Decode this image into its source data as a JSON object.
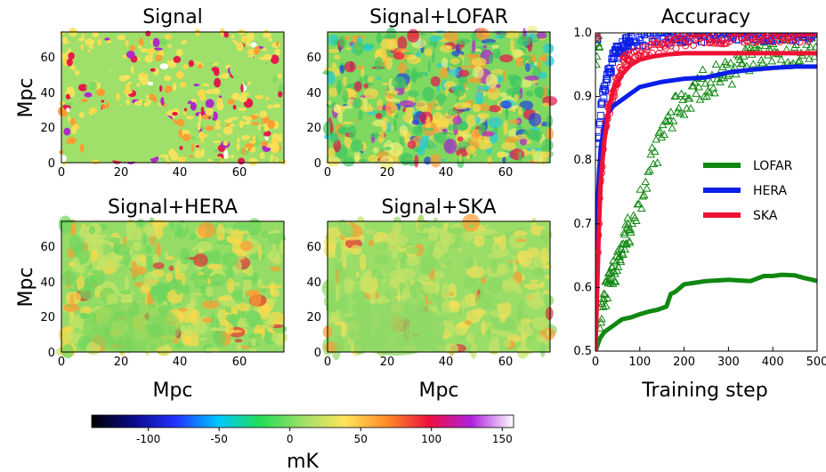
{
  "chart_data": [
    {
      "type": "heatmap",
      "title": "Signal",
      "ylabel": "Mpc",
      "xlabel": "",
      "xlim": [
        0,
        75
      ],
      "ylim": [
        0,
        75
      ],
      "xticks": [
        "0",
        "20",
        "40",
        "60"
      ],
      "yticks": [
        "0",
        "20",
        "40",
        "60"
      ],
      "style": "signal"
    },
    {
      "type": "heatmap",
      "title": "Signal+LOFAR",
      "ylabel": "",
      "xlabel": "",
      "xlim": [
        0,
        75
      ],
      "ylim": [
        0,
        75
      ],
      "xticks": [
        "0",
        "20",
        "40",
        "60"
      ],
      "yticks": [
        "0",
        "20",
        "40",
        "60"
      ],
      "style": "lofar"
    },
    {
      "type": "heatmap",
      "title": "Signal+HERA",
      "ylabel": "Mpc",
      "xlabel": "Mpc",
      "xlim": [
        0,
        75
      ],
      "ylim": [
        0,
        75
      ],
      "xticks": [
        "0",
        "20",
        "40",
        "60"
      ],
      "yticks": [
        "0",
        "20",
        "40",
        "60"
      ],
      "style": "hera"
    },
    {
      "type": "heatmap",
      "title": "Signal+SKA",
      "ylabel": "",
      "xlabel": "Mpc",
      "xlim": [
        0,
        75
      ],
      "ylim": [
        0,
        75
      ],
      "xticks": [
        "0",
        "20",
        "40",
        "60"
      ],
      "yticks": [
        "0",
        "20",
        "40",
        "60"
      ],
      "style": "ska"
    },
    {
      "type": "line",
      "title": "Accuracy",
      "xlabel": "Training step",
      "ylabel": "",
      "xlim": [
        0,
        500
      ],
      "ylim": [
        0.5,
        1.0
      ],
      "xticks": [
        "0",
        "100",
        "200",
        "300",
        "400",
        "500"
      ],
      "yticks": [
        "0.5",
        "0.6",
        "0.7",
        "0.8",
        "0.9",
        "1.0"
      ],
      "legend": "right",
      "series": [
        {
          "name": "LOFAR",
          "color": "#118811",
          "marker": "triangle",
          "line": [
            [
              0,
              0.5
            ],
            [
              10,
              0.52
            ],
            [
              20,
              0.53
            ],
            [
              40,
              0.54
            ],
            [
              60,
              0.55
            ],
            [
              80,
              0.553
            ],
            [
              100,
              0.558
            ],
            [
              120,
              0.562
            ],
            [
              140,
              0.565
            ],
            [
              160,
              0.57
            ],
            [
              170,
              0.59
            ],
            [
              180,
              0.593
            ],
            [
              200,
              0.605
            ],
            [
              220,
              0.607
            ],
            [
              250,
              0.61
            ],
            [
              300,
              0.612
            ],
            [
              350,
              0.61
            ],
            [
              380,
              0.618
            ],
            [
              400,
              0.618
            ],
            [
              420,
              0.62
            ],
            [
              450,
              0.619
            ],
            [
              470,
              0.615
            ],
            [
              490,
              0.612
            ],
            [
              500,
              0.61
            ]
          ],
          "points": [
            [
              10,
              0.55
            ],
            [
              20,
              0.58
            ],
            [
              30,
              0.6
            ],
            [
              40,
              0.62
            ],
            [
              50,
              0.64
            ],
            [
              60,
              0.66
            ],
            [
              70,
              0.68
            ],
            [
              80,
              0.7
            ],
            [
              90,
              0.72
            ],
            [
              100,
              0.74
            ],
            [
              110,
              0.76
            ],
            [
              120,
              0.78
            ],
            [
              130,
              0.8
            ],
            [
              140,
              0.82
            ],
            [
              150,
              0.84
            ],
            [
              160,
              0.85
            ],
            [
              170,
              0.86
            ],
            [
              180,
              0.88
            ],
            [
              200,
              0.89
            ],
            [
              220,
              0.91
            ],
            [
              250,
              0.92
            ],
            [
              280,
              0.93
            ],
            [
              300,
              0.94
            ],
            [
              330,
              0.95
            ],
            [
              360,
              0.96
            ],
            [
              400,
              0.965
            ],
            [
              450,
              0.97
            ],
            [
              500,
              0.975
            ]
          ]
        },
        {
          "name": "HERA",
          "color": "#0a1ee8",
          "marker": "square",
          "line": [
            [
              0,
              0.66
            ],
            [
              5,
              0.73
            ],
            [
              8,
              0.78
            ],
            [
              12,
              0.82
            ],
            [
              20,
              0.855
            ],
            [
              30,
              0.875
            ],
            [
              40,
              0.885
            ],
            [
              60,
              0.895
            ],
            [
              80,
              0.905
            ],
            [
              100,
              0.915
            ],
            [
              150,
              0.923
            ],
            [
              200,
              0.928
            ],
            [
              250,
              0.93
            ],
            [
              300,
              0.938
            ],
            [
              350,
              0.942
            ],
            [
              400,
              0.945
            ],
            [
              450,
              0.947
            ],
            [
              500,
              0.947
            ]
          ],
          "points": [
            [
              5,
              0.82
            ],
            [
              10,
              0.86
            ],
            [
              15,
              0.89
            ],
            [
              20,
              0.91
            ],
            [
              30,
              0.94
            ],
            [
              40,
              0.96
            ],
            [
              50,
              0.97
            ],
            [
              60,
              0.98
            ],
            [
              80,
              0.985
            ],
            [
              100,
              0.99
            ],
            [
              150,
              0.995
            ],
            [
              200,
              0.997
            ],
            [
              300,
              0.998
            ],
            [
              400,
              0.999
            ],
            [
              500,
              0.999
            ]
          ]
        },
        {
          "name": "SKA",
          "color": "#ee1133",
          "marker": "circle",
          "line": [
            [
              0,
              0.5
            ],
            [
              4,
              0.6
            ],
            [
              8,
              0.7
            ],
            [
              12,
              0.77
            ],
            [
              20,
              0.83
            ],
            [
              30,
              0.88
            ],
            [
              40,
              0.91
            ],
            [
              60,
              0.935
            ],
            [
              80,
              0.95
            ],
            [
              100,
              0.958
            ],
            [
              130,
              0.963
            ],
            [
              160,
              0.966
            ],
            [
              200,
              0.968
            ],
            [
              300,
              0.968
            ],
            [
              400,
              0.968
            ],
            [
              500,
              0.968
            ]
          ],
          "points": [
            [
              5,
              0.65
            ],
            [
              10,
              0.75
            ],
            [
              15,
              0.8
            ],
            [
              20,
              0.85
            ],
            [
              30,
              0.88
            ],
            [
              40,
              0.9
            ],
            [
              50,
              0.93
            ],
            [
              60,
              0.95
            ],
            [
              80,
              0.96
            ],
            [
              100,
              0.97
            ],
            [
              150,
              0.98
            ],
            [
              200,
              0.99
            ],
            [
              300,
              0.995
            ],
            [
              400,
              0.997
            ],
            [
              500,
              0.998
            ]
          ]
        }
      ]
    }
  ],
  "colorbar": {
    "label": "mK",
    "min": -140,
    "max": 158,
    "ticks": [
      "-100",
      "-50",
      "0",
      "50",
      "100",
      "150"
    ],
    "tick_values": [
      -100,
      -50,
      0,
      50,
      100,
      150
    ],
    "colors": [
      "#000000",
      "#0a0a8c",
      "#2233ff",
      "#00c8ff",
      "#22dd55",
      "#9ee06a",
      "#ffe45a",
      "#ff8c28",
      "#ee1040",
      "#b020e0",
      "#ffffff"
    ]
  }
}
